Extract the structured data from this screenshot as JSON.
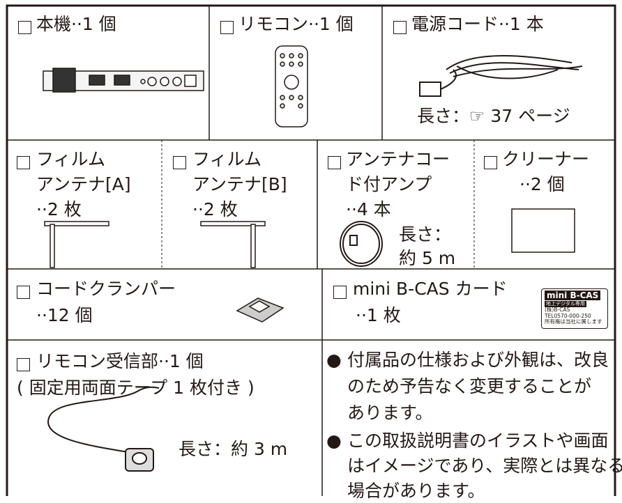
{
  "items": {
    "unit": {
      "label": "本機··1 個"
    },
    "remote": {
      "label": "リモコン··1 個"
    },
    "power_cord": {
      "label": "電源コード··1 本",
      "note": "長さ：☞ 37 ページ"
    },
    "film_a": {
      "lines": [
        "フィルム",
        "アンテナ[A]",
        "··2 枚"
      ]
    },
    "film_b": {
      "lines": [
        "フィルム",
        "アンテナ[B]",
        "··2 枚"
      ]
    },
    "amp": {
      "lines": [
        "アンテナコー",
        "ド付アンプ",
        "··4 本"
      ],
      "note": [
        "長さ：",
        "約 5 m"
      ]
    },
    "cleaner": {
      "lines": [
        "クリーナー",
        "··2 個"
      ]
    },
    "clamper": {
      "lines": [
        "コードクランパー",
        "··12 個"
      ]
    },
    "bcas": {
      "lines": [
        "mini B-CAS カード",
        "··1 枚"
      ],
      "card": [
        "mini B-CAS",
        "地上デジタル専用",
        "(株)B-CAS",
        "TEL0570-000-250",
        "所有権は当社に属します"
      ]
    },
    "receiver": {
      "lines": [
        "リモコン受信部··1 個",
        "( 固定用両面テープ 1 枚付き )"
      ],
      "note": "長さ：約 3 m"
    }
  },
  "notes": [
    [
      "付属品の仕様および外観は、改良",
      "のため予告なく変更することが",
      "あります。"
    ],
    [
      "この取扱説明書のイラストや画面",
      "はイメージであり、実際とは異なる",
      "場合があります。"
    ]
  ]
}
